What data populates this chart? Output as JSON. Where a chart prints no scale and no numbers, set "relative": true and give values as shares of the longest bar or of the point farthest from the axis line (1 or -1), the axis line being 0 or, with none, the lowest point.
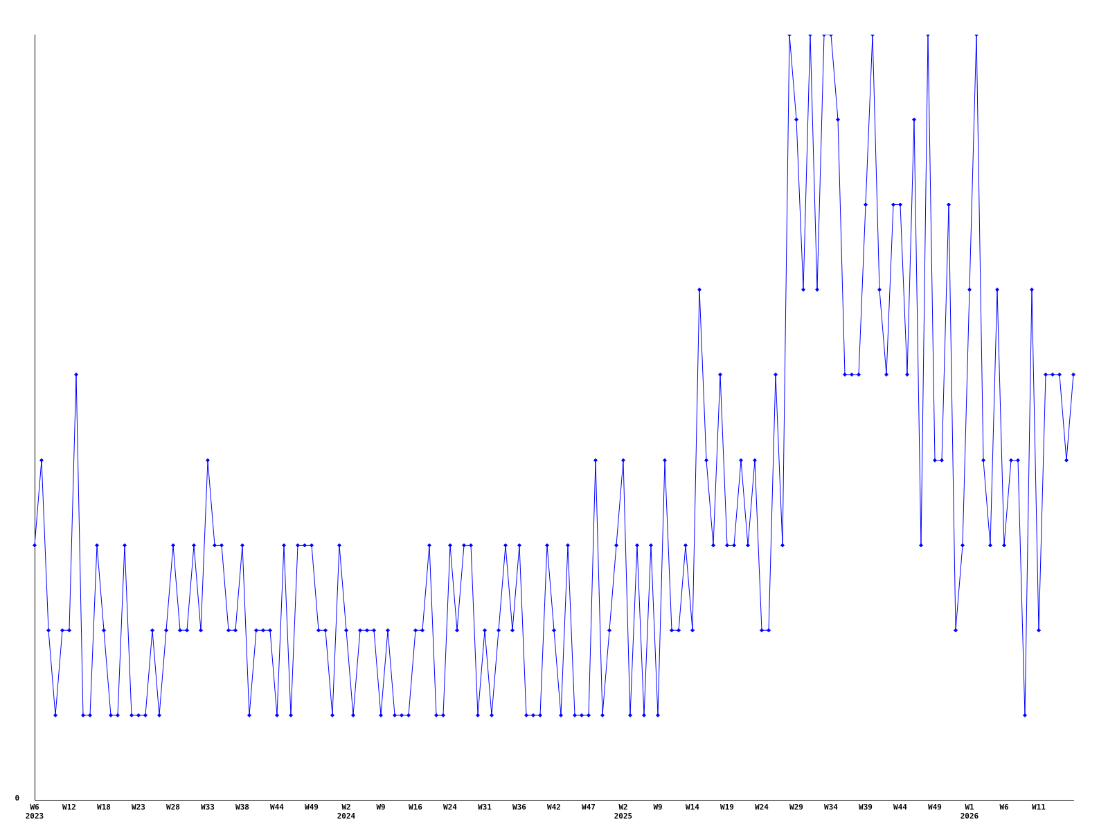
{
  "chart_data": {
    "type": "line",
    "relative": true,
    "marker": "diamond",
    "line_style": "solid",
    "grid": false,
    "legend": false,
    "annotations": [
      "0"
    ],
    "categories": [
      "W6\n2023",
      null,
      null,
      null,
      null,
      "W12",
      null,
      null,
      null,
      null,
      "W18",
      null,
      null,
      null,
      null,
      "W23",
      null,
      null,
      null,
      null,
      "W28",
      null,
      null,
      null,
      null,
      "W33",
      null,
      null,
      null,
      null,
      "W38",
      null,
      null,
      null,
      null,
      "W44",
      null,
      null,
      null,
      null,
      "W49",
      null,
      null,
      null,
      null,
      "W2\n2024",
      null,
      null,
      null,
      null,
      "W9",
      null,
      null,
      null,
      null,
      "W16",
      null,
      null,
      null,
      null,
      "W24",
      null,
      null,
      null,
      null,
      "W31",
      null,
      null,
      null,
      null,
      "W36",
      null,
      null,
      null,
      null,
      "W42",
      null,
      null,
      null,
      null,
      "W47",
      null,
      null,
      null,
      null,
      "W2\n2025",
      null,
      null,
      null,
      null,
      "W9",
      null,
      null,
      null,
      null,
      "W14",
      null,
      null,
      null,
      null,
      "W19",
      null,
      null,
      null,
      null,
      "W24",
      null,
      null,
      null,
      null,
      "W29",
      null,
      null,
      null,
      null,
      "W34",
      null,
      null,
      null,
      null,
      "W39",
      null,
      null,
      null,
      null,
      "W44",
      null,
      null,
      null,
      null,
      "W49",
      null,
      null,
      null,
      null,
      "W1\n2026",
      null,
      null,
      null,
      null,
      "W6",
      null,
      null,
      null,
      null,
      "W11",
      null,
      null,
      null,
      null,
      null
    ],
    "series": [
      {
        "color": "#0000ff",
        "values": [
          0.333,
          0.444,
          0.222,
          0.111,
          0.222,
          0.222,
          0.556,
          0.111,
          0.111,
          0.333,
          0.222,
          0.111,
          0.111,
          0.333,
          0.111,
          0.111,
          0.111,
          0.222,
          0.111,
          0.222,
          0.333,
          0.222,
          0.222,
          0.333,
          0.222,
          0.444,
          0.333,
          0.333,
          0.222,
          0.222,
          0.333,
          0.111,
          0.222,
          0.222,
          0.222,
          0.111,
          0.333,
          0.111,
          0.333,
          0.333,
          0.333,
          0.222,
          0.222,
          0.111,
          0.333,
          0.222,
          0.111,
          0.222,
          0.222,
          0.222,
          0.111,
          0.222,
          0.111,
          0.111,
          0.111,
          0.222,
          0.222,
          0.333,
          0.111,
          0.111,
          0.333,
          0.222,
          0.333,
          0.333,
          0.111,
          0.222,
          0.111,
          0.222,
          0.333,
          0.222,
          0.333,
          0.111,
          0.111,
          0.111,
          0.333,
          0.222,
          0.111,
          0.333,
          0.111,
          0.111,
          0.111,
          0.444,
          0.111,
          0.222,
          0.333,
          0.444,
          0.111,
          0.333,
          0.111,
          0.333,
          0.111,
          0.444,
          0.222,
          0.222,
          0.333,
          0.222,
          0.667,
          0.444,
          0.333,
          0.556,
          0.333,
          0.333,
          0.444,
          0.333,
          0.444,
          0.222,
          0.222,
          0.556,
          0.333,
          1,
          0.889,
          0.667,
          1,
          0.667,
          1,
          1,
          0.889,
          0.556,
          0.556,
          0.556,
          0.778,
          1,
          0.667,
          0.556,
          0.778,
          0.778,
          0.556,
          0.889,
          0.333,
          1,
          0.444,
          0.444,
          0.778,
          0.222,
          0.333,
          0.667,
          1,
          0.444,
          0.333,
          0.667,
          0.333,
          0.444,
          0.444,
          0.111,
          0.667,
          0.222,
          0.556,
          0.556,
          0.556,
          0.444,
          0.556
        ]
      }
    ]
  }
}
